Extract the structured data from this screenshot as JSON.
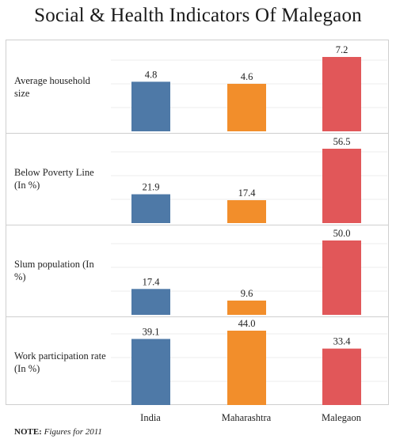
{
  "title": "Social & Health Indicators Of Malegaon",
  "note": {
    "label": "NOTE:",
    "text": "Figures for 2011"
  },
  "colors": {
    "India": "#4e79a7",
    "Maharashtra": "#f28e2b",
    "Malegaon": "#e15759"
  },
  "chart_data": {
    "type": "bar",
    "categories": [
      "India",
      "Maharashtra",
      "Malegaon"
    ],
    "grid": "horizontal",
    "legend": "none",
    "panels": [
      {
        "label": "Average household size",
        "values": [
          4.8,
          4.6,
          7.2
        ],
        "value_labels": [
          "4.8",
          "4.6",
          "7.2"
        ],
        "ylim": [
          0,
          7.2
        ]
      },
      {
        "label": "Below Poverty Line (In %)",
        "values": [
          21.9,
          17.4,
          56.5
        ],
        "value_labels": [
          "21.9",
          "17.4",
          "56.5"
        ],
        "ylim": [
          0,
          56.5
        ]
      },
      {
        "label": "Slum population (In %)",
        "values": [
          17.4,
          9.6,
          50.0
        ],
        "value_labels": [
          "17.4",
          "9.6",
          "50.0"
        ],
        "ylim": [
          0,
          50.0
        ]
      },
      {
        "label": "Work participation rate (In %)",
        "values": [
          39.1,
          44.0,
          33.4
        ],
        "value_labels": [
          "39.1",
          "44.0",
          "33.4"
        ],
        "ylim": [
          0,
          44.0
        ]
      }
    ]
  }
}
